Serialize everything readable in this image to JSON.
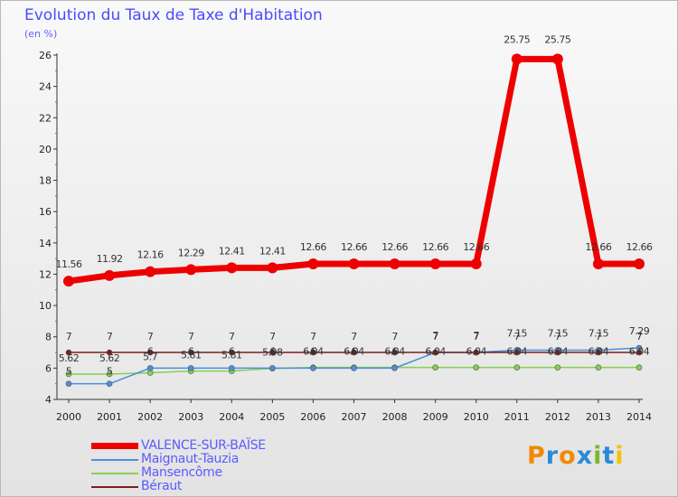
{
  "header": {
    "title": "Evolution du Taux de Taxe d'Habitation",
    "subtitle": "(en %)"
  },
  "logo": {
    "text": "Proxiti",
    "colors": [
      "#f08a00",
      "#2b8ad6",
      "#f08a00",
      "#2b8ad6",
      "#7ab82e",
      "#2b8ad6",
      "#f0c400"
    ]
  },
  "chart_data": {
    "type": "line",
    "title": "Evolution du Taux de Taxe d'Habitation",
    "ylabel": "(en %)",
    "xlabel": "",
    "x": [
      "2000",
      "2001",
      "2002",
      "2003",
      "2004",
      "2005",
      "2006",
      "2007",
      "2008",
      "2009",
      "2010",
      "2011",
      "2012",
      "2013",
      "2014"
    ],
    "ylim": [
      4,
      26
    ],
    "yticks": [
      "4",
      "6",
      "8",
      "10",
      "12",
      "14",
      "16",
      "18",
      "20",
      "22",
      "24",
      "26"
    ],
    "grid": false,
    "legend_position": "bottom-left",
    "series": [
      {
        "name": "VALENCE-SUR-BAÏSE",
        "color": "#ee0000",
        "values": [
          11.56,
          11.92,
          12.16,
          12.29,
          12.41,
          12.41,
          12.66,
          12.66,
          12.66,
          12.66,
          12.66,
          25.75,
          25.75,
          12.66,
          12.66
        ],
        "labels": [
          "11.56",
          "11.92",
          "12.16",
          "12.29",
          "12.41",
          "12.41",
          "12.66",
          "12.66",
          "12.66",
          "12.66",
          "12.66",
          "25.75",
          "25.75",
          "12.66",
          "12.66"
        ]
      },
      {
        "name": "Maignaut-Tauzia",
        "color": "#4a90d9",
        "values": [
          5,
          5,
          6,
          6,
          6,
          6,
          6,
          6,
          6,
          7,
          7,
          7.15,
          7.15,
          7.15,
          7.29
        ],
        "labels": [
          "5",
          "5",
          "6",
          "6",
          "6",
          "6",
          "6",
          "6",
          "6",
          "7",
          "7",
          "7.15",
          "7.15",
          "7.15",
          "7.29"
        ]
      },
      {
        "name": "Mansencôme",
        "color": "#88d050",
        "values": [
          5.62,
          5.62,
          5.7,
          5.81,
          5.81,
          5.98,
          6.04,
          6.04,
          6.04,
          6.04,
          6.04,
          6.04,
          6.04,
          6.04,
          6.04
        ],
        "labels": [
          "5.62",
          "5.62",
          "5.7",
          "5.81",
          "5.81",
          "5.98",
          "6.04",
          "6.04",
          "6.04",
          "6.04",
          "6.04",
          "6.04",
          "6.04",
          "6.04",
          "6.04"
        ]
      },
      {
        "name": "Béraut",
        "color": "#7a1f1f",
        "values": [
          7,
          7,
          7,
          7,
          7,
          7,
          7,
          7,
          7,
          7,
          7,
          7,
          7,
          7,
          7
        ],
        "labels": [
          "7",
          "7",
          "7",
          "7",
          "7",
          "7",
          "7",
          "7",
          "7",
          "7",
          "7",
          "7",
          "7",
          "7",
          "7"
        ]
      }
    ]
  }
}
